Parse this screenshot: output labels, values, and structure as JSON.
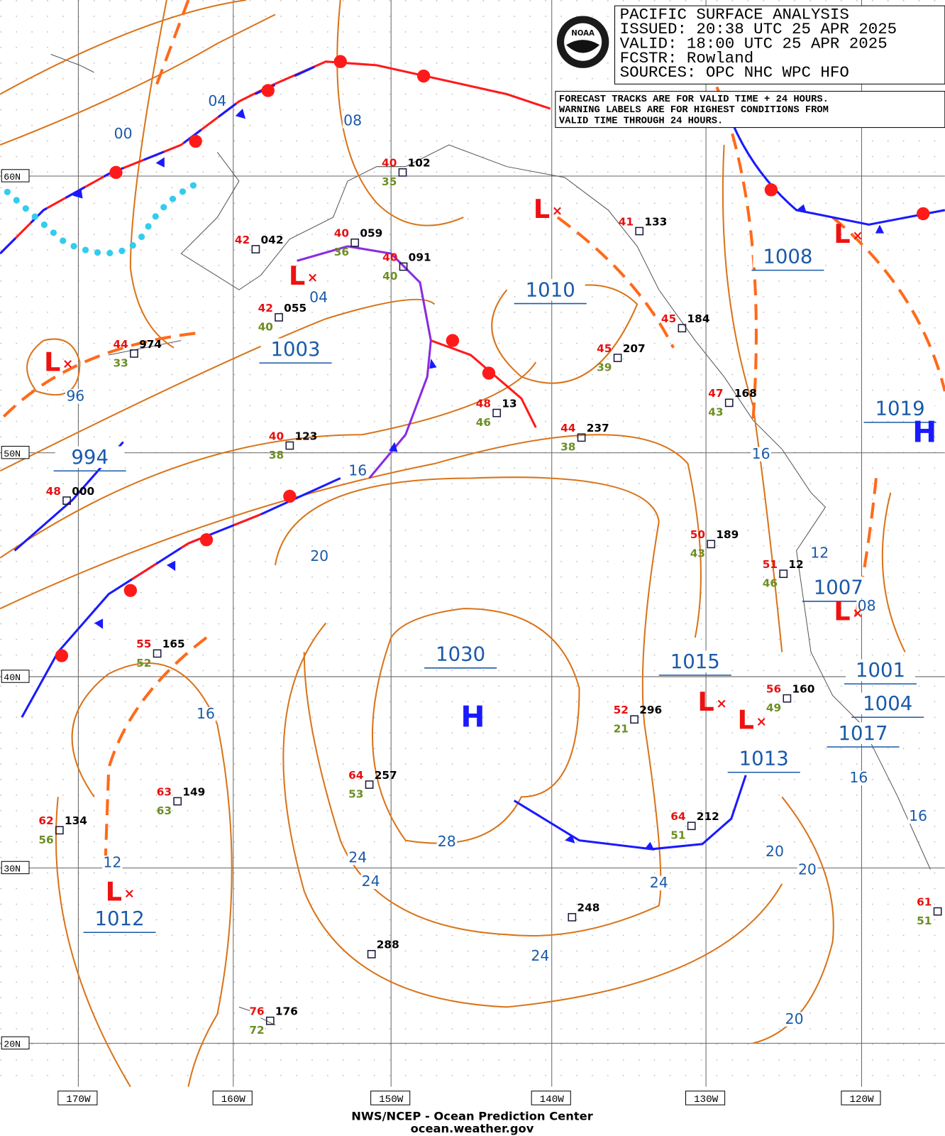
{
  "header": {
    "title": "PACIFIC SURFACE ANALYSIS",
    "issued": "ISSUED: 20:38 UTC 25 APR 2025",
    "valid": "VALID:  18:00 UTC 25 APR 2025",
    "forecaster": "FCSTR:  Rowland",
    "sources": "SOURCES: OPC NHC WPC HFO"
  },
  "note": [
    "FORECAST TRACKS ARE FOR VALID TIME + 24 HOURS.",
    "WARNING LABELS ARE FOR HIGHEST CONDITIONS FROM",
    "VALID TIME THROUGH 24 HOURS."
  ],
  "logo": "NOAA",
  "lat_labels": [
    "60N",
    "50N",
    "40N",
    "30N",
    "20N"
  ],
  "lon_labels": [
    "170W",
    "160W",
    "150W",
    "140W",
    "130W",
    "120W"
  ],
  "pressure_labels": [
    "994",
    "1003",
    "1010",
    "1008",
    "1019",
    "1030",
    "1015",
    "1007",
    "1001",
    "1004",
    "1017",
    "1013",
    "1012"
  ],
  "isobar_labels": [
    "04",
    "00",
    "08",
    "04",
    "96",
    "16",
    "20",
    "28",
    "24",
    "24",
    "24",
    "24",
    "20",
    "20",
    "20",
    "16",
    "12",
    "12",
    "16",
    "16",
    "16",
    "08"
  ],
  "highs": [
    "H",
    "H"
  ],
  "lows": [
    "L",
    "L",
    "L",
    "L",
    "L",
    "L",
    "L",
    "L"
  ],
  "stations": [
    {
      "temp": "40",
      "pres": "102",
      "dew": "35"
    },
    {
      "temp": "42",
      "pres": "042"
    },
    {
      "temp": "40",
      "pres": "059",
      "dew": "36"
    },
    {
      "temp": "40",
      "pres": "091",
      "dew": "40"
    },
    {
      "temp": "42",
      "pres": "055",
      "dew": "40"
    },
    {
      "temp": "44",
      "pres": "974",
      "dew": "33"
    },
    {
      "temp": "45",
      "pres": "207",
      "dew": "39"
    },
    {
      "temp": "41",
      "pres": "133"
    },
    {
      "temp": "45",
      "pres": "184"
    },
    {
      "temp": "48",
      "pres": "13",
      "dew": "46"
    },
    {
      "temp": "40",
      "pres": "123",
      "dew": "38"
    },
    {
      "temp": "44",
      "pres": "237",
      "dew": "38"
    },
    {
      "temp": "47",
      "pres": "168",
      "dew": "43"
    },
    {
      "temp": "48",
      "pres": "000"
    },
    {
      "temp": "50",
      "pres": "189",
      "dew": "43"
    },
    {
      "temp": "51",
      "pres": "12",
      "dew": "46"
    },
    {
      "temp": "55",
      "pres": "165",
      "dew": "52"
    },
    {
      "temp": "52",
      "pres": "296",
      "dew": "21"
    },
    {
      "temp": "56",
      "pres": "160",
      "dew": "49"
    },
    {
      "temp": "64",
      "pres": "257",
      "dew": "53"
    },
    {
      "temp": "63",
      "pres": "149",
      "dew": "63"
    },
    {
      "temp": "62",
      "pres": "134",
      "dew": "56"
    },
    {
      "temp": "64",
      "pres": "212",
      "dew": "51"
    },
    {
      "pres": "248"
    },
    {
      "pres": "288"
    },
    {
      "temp": "76",
      "pres": "176",
      "dew": "72"
    },
    {
      "temp": "61",
      "dew": "51"
    }
  ],
  "footer": {
    "line1": "NWS/NCEP - Ocean Prediction Center",
    "line2": "ocean.weather.gov"
  }
}
